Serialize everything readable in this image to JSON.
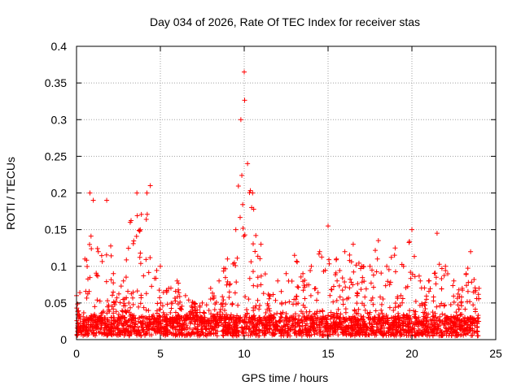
{
  "chart_data": {
    "type": "scatter",
    "title": "Day 034 of 2026, Rate Of TEC Index for receiver stas",
    "xlabel": "GPS time / hours",
    "ylabel": "ROTI / TECUs",
    "xlim": [
      0,
      25
    ],
    "ylim": [
      0,
      0.4
    ],
    "xticks": [
      0,
      5,
      10,
      15,
      20,
      25
    ],
    "xtick_labels": [
      "0",
      "5",
      "10",
      "15",
      "20",
      "25"
    ],
    "yticks": [
      0,
      0.05,
      0.1,
      0.15,
      0.2,
      0.25,
      0.3,
      0.35,
      0.4
    ],
    "ytick_labels": [
      "0",
      "0.05",
      "0.1",
      "0.15",
      "0.2",
      "0.25",
      "0.3",
      "0.35",
      "0.4"
    ],
    "grid": true,
    "marker": "+",
    "series": [
      {
        "name": "ROTI",
        "color": "#ff0000",
        "envelope_hours": [
          0,
          0.5,
          0.8,
          1.0,
          1.3,
          1.8,
          2.2,
          2.8,
          3.2,
          3.6,
          4.2,
          4.4,
          5.0,
          5.5,
          6.0,
          6.5,
          7.0,
          7.5,
          8.0,
          8.5,
          9.0,
          9.5,
          9.8,
          10.0,
          10.2,
          10.5,
          11.0,
          11.5,
          12.0,
          12.5,
          13.0,
          13.5,
          14.0,
          14.5,
          15.0,
          15.5,
          16.0,
          16.5,
          17.0,
          17.5,
          18.0,
          18.5,
          19.0,
          19.5,
          20.0,
          20.5,
          21.0,
          21.5,
          22.0,
          22.5,
          23.0,
          23.5,
          24.0
        ],
        "envelope_max_roti": [
          0.06,
          0.11,
          0.2,
          0.19,
          0.12,
          0.19,
          0.09,
          0.08,
          0.16,
          0.2,
          0.2,
          0.21,
          0.1,
          0.07,
          0.08,
          0.06,
          0.05,
          0.05,
          0.07,
          0.08,
          0.11,
          0.15,
          0.3,
          0.365,
          0.24,
          0.2,
          0.13,
          0.06,
          0.08,
          0.09,
          0.115,
          0.09,
          0.1,
          0.12,
          0.155,
          0.11,
          0.12,
          0.13,
          0.1,
          0.1,
          0.135,
          0.1,
          0.125,
          0.1,
          0.15,
          0.08,
          0.08,
          0.145,
          0.1,
          0.08,
          0.07,
          0.12,
          0.07
        ],
        "baseline_roti": [
          0.005,
          0.03
        ]
      }
    ]
  }
}
